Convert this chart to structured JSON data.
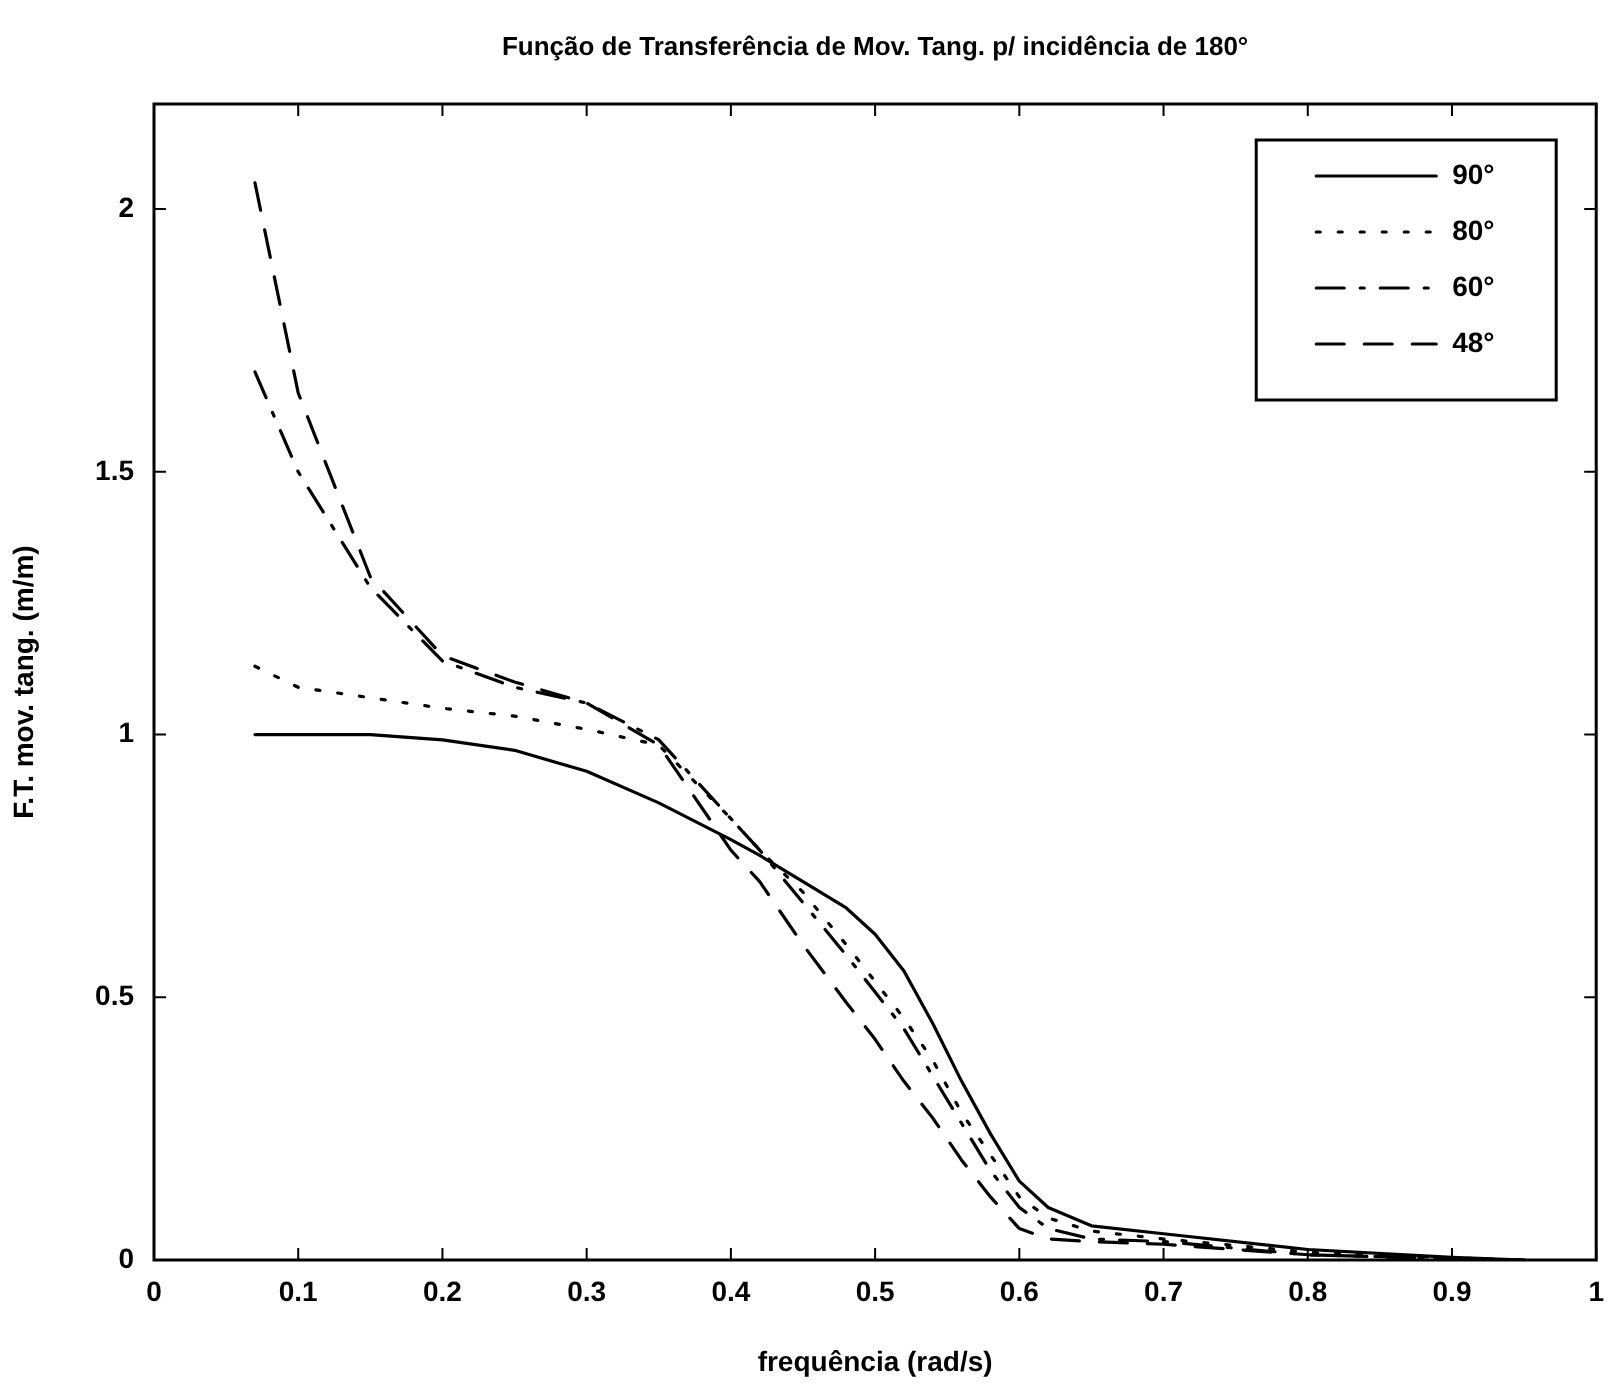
{
  "chart_data": {
    "type": "line",
    "title": "Função de Transferência de Mov. Tang. p/ incidência de 180°",
    "xlabel": "frequência (rad/s)",
    "ylabel": "F.T. mov. tang. (m/m)",
    "xlim": [
      0,
      1
    ],
    "xticks": [
      0,
      0.1,
      0.2,
      0.3,
      0.4,
      0.5,
      0.6,
      0.7,
      0.8,
      0.9,
      1
    ],
    "ylim": [
      0,
      2.2
    ],
    "yticks": [
      0,
      0.5,
      1,
      1.5,
      2
    ],
    "grid": false,
    "legend": "top right",
    "marker": "none",
    "x": [
      0.07,
      0.1,
      0.15,
      0.2,
      0.25,
      0.3,
      0.35,
      0.4,
      0.42,
      0.45,
      0.48,
      0.5,
      0.52,
      0.54,
      0.56,
      0.58,
      0.6,
      0.62,
      0.65,
      0.7,
      0.8,
      0.9,
      0.95
    ],
    "series": [
      {
        "name": "90°",
        "color": "#000000",
        "line_style": "solid",
        "values": [
          1.0,
          1.0,
          1.0,
          0.99,
          0.97,
          0.93,
          0.87,
          0.8,
          0.77,
          0.72,
          0.67,
          0.62,
          0.55,
          0.45,
          0.34,
          0.24,
          0.15,
          0.1,
          0.065,
          0.05,
          0.02,
          0.005,
          0
        ]
      },
      {
        "name": "80°",
        "color": "#000000",
        "line_style": "dotted",
        "values": [
          1.13,
          1.09,
          1.07,
          1.05,
          1.035,
          1.01,
          0.98,
          0.84,
          0.78,
          0.7,
          0.6,
          0.53,
          0.46,
          0.38,
          0.28,
          0.2,
          0.12,
          0.08,
          0.055,
          0.04,
          0.015,
          0.004,
          0
        ]
      },
      {
        "name": "60°",
        "color": "#000000",
        "line_style": "dashdot",
        "values": [
          1.69,
          1.5,
          1.28,
          1.14,
          1.09,
          1.06,
          0.99,
          0.84,
          0.78,
          0.68,
          0.58,
          0.51,
          0.44,
          0.35,
          0.26,
          0.17,
          0.1,
          0.06,
          0.04,
          0.035,
          0.01,
          0.003,
          0
        ]
      },
      {
        "name": "48°",
        "color": "#000000",
        "line_style": "dashed",
        "values": [
          2.05,
          1.65,
          1.3,
          1.15,
          1.1,
          1.06,
          0.98,
          0.78,
          0.72,
          0.6,
          0.49,
          0.42,
          0.34,
          0.27,
          0.19,
          0.12,
          0.06,
          0.04,
          0.035,
          0.03,
          0.01,
          0.002,
          0
        ]
      }
    ]
  }
}
